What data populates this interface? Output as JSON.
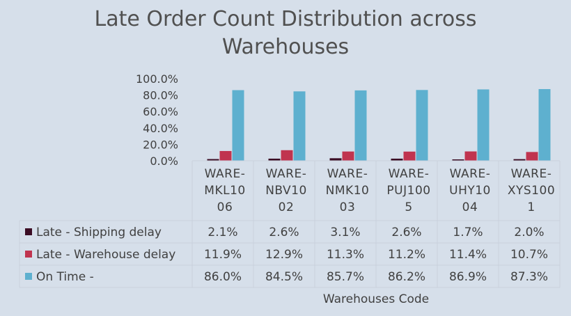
{
  "chart_data": {
    "type": "bar",
    "title": "Late Order Count Distribution across Warehouses",
    "title_lines": [
      "Late Order Count Distribution across",
      "Warehouses"
    ],
    "xlabel": "Warehouses Code",
    "ylabel": "",
    "ylim": [
      0,
      100
    ],
    "yticks": [
      "0.0%",
      "20.0%",
      "40.0%",
      "60.0%",
      "80.0%",
      "100.0%"
    ],
    "categories": [
      "WARE-MKL1006",
      "WARE-NBV1002",
      "WARE-NMK1003",
      "WARE-PUJ1005",
      "WARE-UHY1004",
      "WARE-XYS1001"
    ],
    "category_lines": [
      [
        "WARE-",
        "MKL10",
        "06"
      ],
      [
        "WARE-",
        "NBV10",
        "02"
      ],
      [
        "WARE-",
        "NMK10",
        "03"
      ],
      [
        "WARE-",
        "PUJ100",
        "5"
      ],
      [
        "WARE-",
        "UHY10",
        "04"
      ],
      [
        "WARE-",
        "XYS100",
        "1"
      ]
    ],
    "series": [
      {
        "name": "Late - Shipping delay",
        "color": "#3b0d24",
        "values": [
          2.1,
          2.6,
          3.1,
          2.6,
          1.7,
          2.0
        ],
        "labels": [
          "2.1%",
          "2.6%",
          "3.1%",
          "2.6%",
          "1.7%",
          "2.0%"
        ]
      },
      {
        "name": "Late - Warehouse delay",
        "color": "#c0344f",
        "values": [
          11.9,
          12.9,
          11.3,
          11.2,
          11.4,
          10.7
        ],
        "labels": [
          "11.9%",
          "12.9%",
          "11.3%",
          "11.2%",
          "11.4%",
          "10.7%"
        ]
      },
      {
        "name": "On Time -",
        "color": "#5eb0cf",
        "values": [
          86.0,
          84.5,
          85.7,
          86.2,
          86.9,
          87.3
        ],
        "labels": [
          "86.0%",
          "84.5%",
          "85.7%",
          "86.2%",
          "86.9%",
          "87.3%"
        ]
      }
    ],
    "legend_placement": "data-table-left",
    "grid": false
  }
}
